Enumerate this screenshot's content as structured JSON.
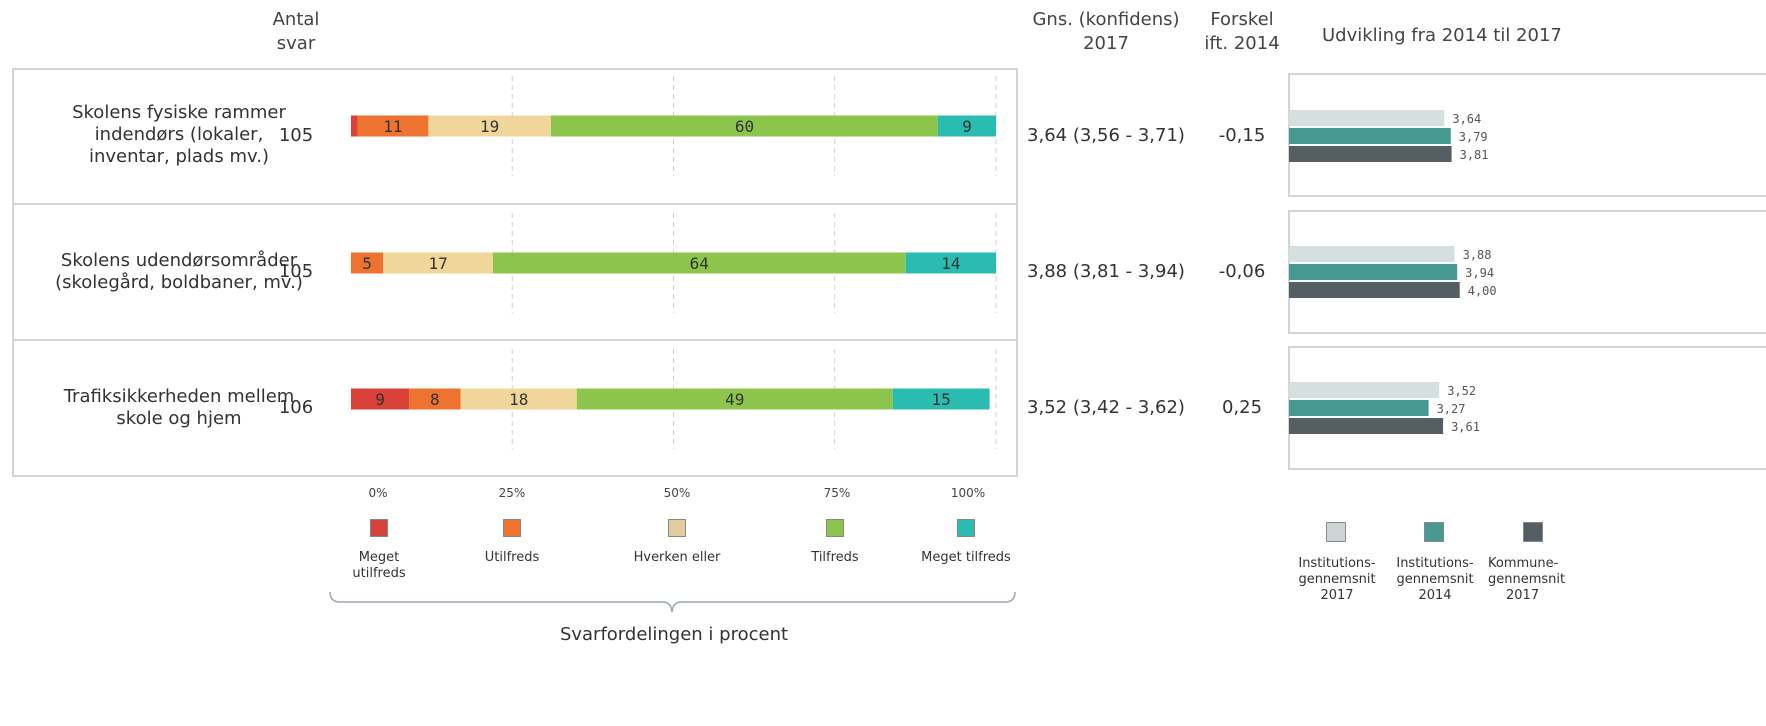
{
  "headers": {
    "antal": "Antal svar",
    "antal_l1": "Antal",
    "antal_l2": "svar",
    "gns_l1": "Gns. (konfidens)",
    "gns_l2": "2017",
    "forskel_l1": "Forskel",
    "forskel_l2": "ift. 2014",
    "udvikling": "Udvikling fra 2014 til 2017"
  },
  "rows": [
    {
      "label_lines": [
        "Skolens fysiske rammer",
        "indendørs (lokaler,",
        "inventar, plads mv.)"
      ],
      "count": "105",
      "mean": "3,64 (3,56 - 3,71)",
      "diff": "-0,15"
    },
    {
      "label_lines": [
        "Skolens udendørsområder",
        "(skolegård, boldbaner, mv.)"
      ],
      "count": "105",
      "mean": "3,88 (3,81 - 3,94)",
      "diff": "-0,06"
    },
    {
      "label_lines": [
        "Trafiksikkerheden mellem",
        "skole og hjem"
      ],
      "count": "106",
      "mean": "3,52 (3,42 - 3,62)",
      "diff": "0,25"
    }
  ],
  "chart_data": [
    {
      "type": "bar",
      "stacked": true,
      "orientation": "horizontal",
      "categories": [
        "Skolens fysiske rammer indendørs (lokaler, inventar, plads mv.)",
        "Skolens udendørsområder (skolegård, boldbaner, mv.)",
        "Trafiksikkerheden mellem skole og hjem"
      ],
      "series": [
        {
          "name": "Meget utilfreds",
          "values": [
            1,
            0,
            9
          ],
          "labels": [
            "",
            "",
            "9"
          ]
        },
        {
          "name": "Utilfreds",
          "values": [
            11,
            5,
            8
          ],
          "labels": [
            "11",
            "5",
            "8"
          ]
        },
        {
          "name": "Hverken eller",
          "values": [
            19,
            17,
            18
          ],
          "labels": [
            "19",
            "17",
            "18"
          ]
        },
        {
          "name": "Tilfreds",
          "values": [
            60,
            64,
            49
          ],
          "labels": [
            "60",
            "64",
            "49"
          ]
        },
        {
          "name": "Meget tilfreds",
          "values": [
            9,
            14,
            15
          ],
          "labels": [
            "9",
            "14",
            "15"
          ]
        }
      ],
      "colors": [
        "#d9413a",
        "#ee7230",
        "#f0d69a",
        "#8dc54c",
        "#2abcb0"
      ],
      "xlim": [
        0,
        100
      ],
      "ticks": [
        "0%",
        "25%",
        "50%",
        "75%",
        "100%"
      ],
      "xlabel": "Svarfordelingen i procent",
      "grid": true,
      "legend_position": "bottom"
    },
    {
      "type": "bar",
      "orientation": "horizontal",
      "title": "Udvikling fra 2014 til 2017",
      "categories": [
        "Skolens fysiske rammer indendørs (lokaler, inventar, plads mv.)",
        "Skolens udendørsområder (skolegård, boldbaner, mv.)",
        "Trafiksikkerheden mellem skole og hjem"
      ],
      "series": [
        {
          "name": "Institutionsgennemsnit 2017",
          "values": [
            3.64,
            3.88,
            3.52
          ],
          "labels": [
            "3,64",
            "3,88",
            "3,52"
          ]
        },
        {
          "name": "Institutionsgennemsnit 2014",
          "values": [
            3.79,
            3.94,
            3.27
          ],
          "labels": [
            "3,79",
            "3,94",
            "3,27"
          ]
        },
        {
          "name": "Kommunegennemsnit 2017",
          "values": [
            3.81,
            4.0,
            3.61
          ],
          "labels": [
            "3,81",
            "4,00",
            "3,61"
          ]
        }
      ],
      "colors": [
        "#d5dfe0",
        "#479a91",
        "#555f63"
      ],
      "xlim": [
        0,
        5
      ],
      "legend_position": "bottom"
    }
  ],
  "legend": [
    {
      "lines": [
        "Meget",
        "utilfreds"
      ]
    },
    {
      "lines": [
        "Utilfreds"
      ]
    },
    {
      "lines": [
        "Hverken eller"
      ]
    },
    {
      "lines": [
        "Tilfreds"
      ]
    },
    {
      "lines": [
        "Meget tilfreds"
      ]
    }
  ],
  "dev_legend": [
    {
      "lines": [
        "Institutions-",
        "gennemsnit",
        "2017"
      ]
    },
    {
      "lines": [
        "Institutions-",
        "gennemsnit",
        "2014"
      ]
    },
    {
      "lines": [
        "Kommune-",
        "gennemsnit",
        "2017"
      ]
    }
  ]
}
